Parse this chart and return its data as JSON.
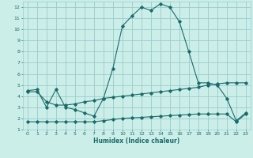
{
  "xlabel": "Humidex (Indice chaleur)",
  "bg_color": "#cceee8",
  "grid_color": "#99cccc",
  "line_color": "#1a6b6b",
  "xlim": [
    -0.5,
    23.5
  ],
  "ylim": [
    1,
    12.5
  ],
  "xticks": [
    0,
    1,
    2,
    3,
    4,
    5,
    6,
    7,
    8,
    9,
    10,
    11,
    12,
    13,
    14,
    15,
    16,
    17,
    18,
    19,
    20,
    21,
    22,
    23
  ],
  "yticks": [
    1,
    2,
    3,
    4,
    5,
    6,
    7,
    8,
    9,
    10,
    11,
    12
  ],
  "line1_x": [
    0,
    1,
    2,
    3,
    4,
    5,
    6,
    7,
    8,
    9,
    10,
    11,
    12,
    13,
    14,
    15,
    16,
    17,
    18,
    19,
    20,
    21,
    22,
    23
  ],
  "line1_y": [
    4.5,
    4.6,
    3.0,
    4.6,
    3.0,
    2.8,
    2.5,
    2.2,
    3.8,
    6.5,
    10.3,
    11.2,
    12.0,
    11.7,
    12.3,
    12.0,
    10.7,
    8.0,
    5.2,
    5.2,
    5.0,
    3.8,
    1.8,
    2.5
  ],
  "line2_x": [
    0,
    1,
    2,
    3,
    4,
    5,
    6,
    7,
    8,
    9,
    10,
    11,
    12,
    13,
    14,
    15,
    16,
    17,
    18,
    19,
    20,
    21,
    22,
    23
  ],
  "line2_y": [
    4.4,
    4.4,
    3.5,
    3.2,
    3.2,
    3.3,
    3.5,
    3.6,
    3.8,
    3.9,
    4.0,
    4.1,
    4.2,
    4.3,
    4.4,
    4.5,
    4.6,
    4.7,
    4.8,
    5.0,
    5.1,
    5.2,
    5.2,
    5.2
  ],
  "line3_x": [
    0,
    1,
    2,
    3,
    4,
    5,
    6,
    7,
    8,
    9,
    10,
    11,
    12,
    13,
    14,
    15,
    16,
    17,
    18,
    19,
    20,
    21,
    22,
    23
  ],
  "line3_y": [
    1.7,
    1.7,
    1.7,
    1.7,
    1.7,
    1.7,
    1.7,
    1.7,
    1.8,
    1.9,
    2.0,
    2.05,
    2.1,
    2.15,
    2.2,
    2.25,
    2.3,
    2.35,
    2.4,
    2.4,
    2.4,
    2.4,
    1.7,
    2.4
  ]
}
